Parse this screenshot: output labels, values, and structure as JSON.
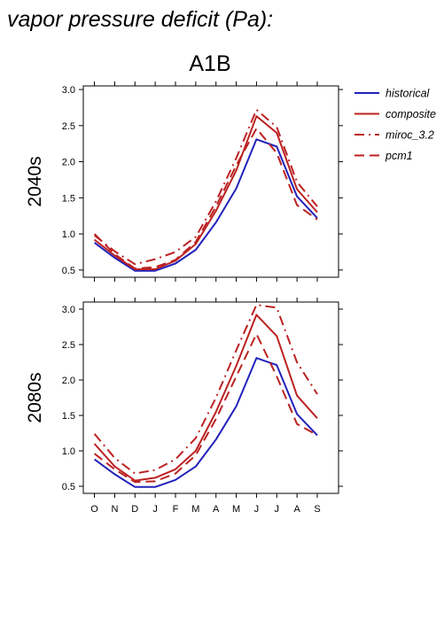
{
  "figure": {
    "title": "vapor pressure deficit (Pa):",
    "subtitle": "A1B"
  },
  "colors": {
    "historical": "#2222bb",
    "scenario": "#bb2222"
  },
  "chart_data": [
    {
      "type": "line",
      "panel_label": "2040s",
      "categories": [
        "O",
        "N",
        "D",
        "J",
        "F",
        "M",
        "A",
        "M",
        "J",
        "J",
        "A",
        "S"
      ],
      "ylim": [
        0.4,
        3.05
      ],
      "yticks": [
        0.5,
        1.0,
        1.5,
        2.0,
        2.5,
        3.0
      ],
      "ytick_labels": [
        "0.5",
        "1.0",
        "1.5",
        "2.0",
        "2.5",
        "3.0"
      ],
      "series": [
        {
          "name": "historical",
          "style": "solid",
          "color": "#2222bb",
          "values": [
            0.88,
            0.67,
            0.49,
            0.49,
            0.59,
            0.78,
            1.16,
            1.63,
            2.31,
            2.21,
            1.52,
            1.22
          ]
        },
        {
          "name": "composite",
          "style": "solid",
          "color": "#bb2222",
          "values": [
            0.92,
            0.7,
            0.51,
            0.51,
            0.63,
            0.86,
            1.32,
            1.88,
            2.63,
            2.4,
            1.62,
            1.3
          ]
        },
        {
          "name": "miroc_3.2",
          "style": "dashdot",
          "color": "#bb2222",
          "values": [
            0.98,
            0.76,
            0.58,
            0.65,
            0.75,
            0.96,
            1.45,
            2.05,
            2.72,
            2.48,
            1.72,
            1.38
          ]
        },
        {
          "name": "pcm1",
          "style": "dashed",
          "color": "#bb2222",
          "values": [
            1.0,
            0.72,
            0.52,
            0.54,
            0.64,
            0.89,
            1.38,
            1.95,
            2.46,
            2.12,
            1.4,
            1.2
          ]
        }
      ]
    },
    {
      "type": "line",
      "panel_label": "2080s",
      "categories": [
        "O",
        "N",
        "D",
        "J",
        "F",
        "M",
        "A",
        "M",
        "J",
        "J",
        "A",
        "S"
      ],
      "ylim": [
        0.4,
        3.1
      ],
      "yticks": [
        0.5,
        1.0,
        1.5,
        2.0,
        2.5,
        3.0
      ],
      "ytick_labels": [
        "0.5",
        "1.0",
        "1.5",
        "2.0",
        "2.5",
        "3.0"
      ],
      "series": [
        {
          "name": "historical",
          "style": "solid",
          "color": "#2222bb",
          "values": [
            0.88,
            0.67,
            0.49,
            0.49,
            0.59,
            0.78,
            1.16,
            1.63,
            2.31,
            2.21,
            1.52,
            1.22
          ]
        },
        {
          "name": "composite",
          "style": "solid",
          "color": "#bb2222",
          "values": [
            1.1,
            0.78,
            0.58,
            0.62,
            0.74,
            1.0,
            1.55,
            2.2,
            2.92,
            2.62,
            1.78,
            1.46
          ]
        },
        {
          "name": "miroc_3.2",
          "style": "dashdot",
          "color": "#bb2222",
          "values": [
            1.24,
            0.9,
            0.68,
            0.73,
            0.88,
            1.18,
            1.75,
            2.42,
            3.06,
            3.02,
            2.25,
            1.8
          ]
        },
        {
          "name": "pcm1",
          "style": "dashed",
          "color": "#bb2222",
          "values": [
            0.96,
            0.74,
            0.56,
            0.57,
            0.68,
            0.94,
            1.45,
            2.05,
            2.65,
            2.05,
            1.38,
            1.22
          ]
        }
      ]
    }
  ],
  "legend": {
    "placement": "right",
    "items": [
      {
        "label": "historical",
        "style": "solid",
        "color": "#2222bb"
      },
      {
        "label": "composite",
        "style": "solid",
        "color": "#bb2222"
      },
      {
        "label": "miroc_3.2",
        "style": "dashdot",
        "color": "#bb2222"
      },
      {
        "label": "pcm1",
        "style": "dashed",
        "color": "#bb2222"
      }
    ]
  }
}
